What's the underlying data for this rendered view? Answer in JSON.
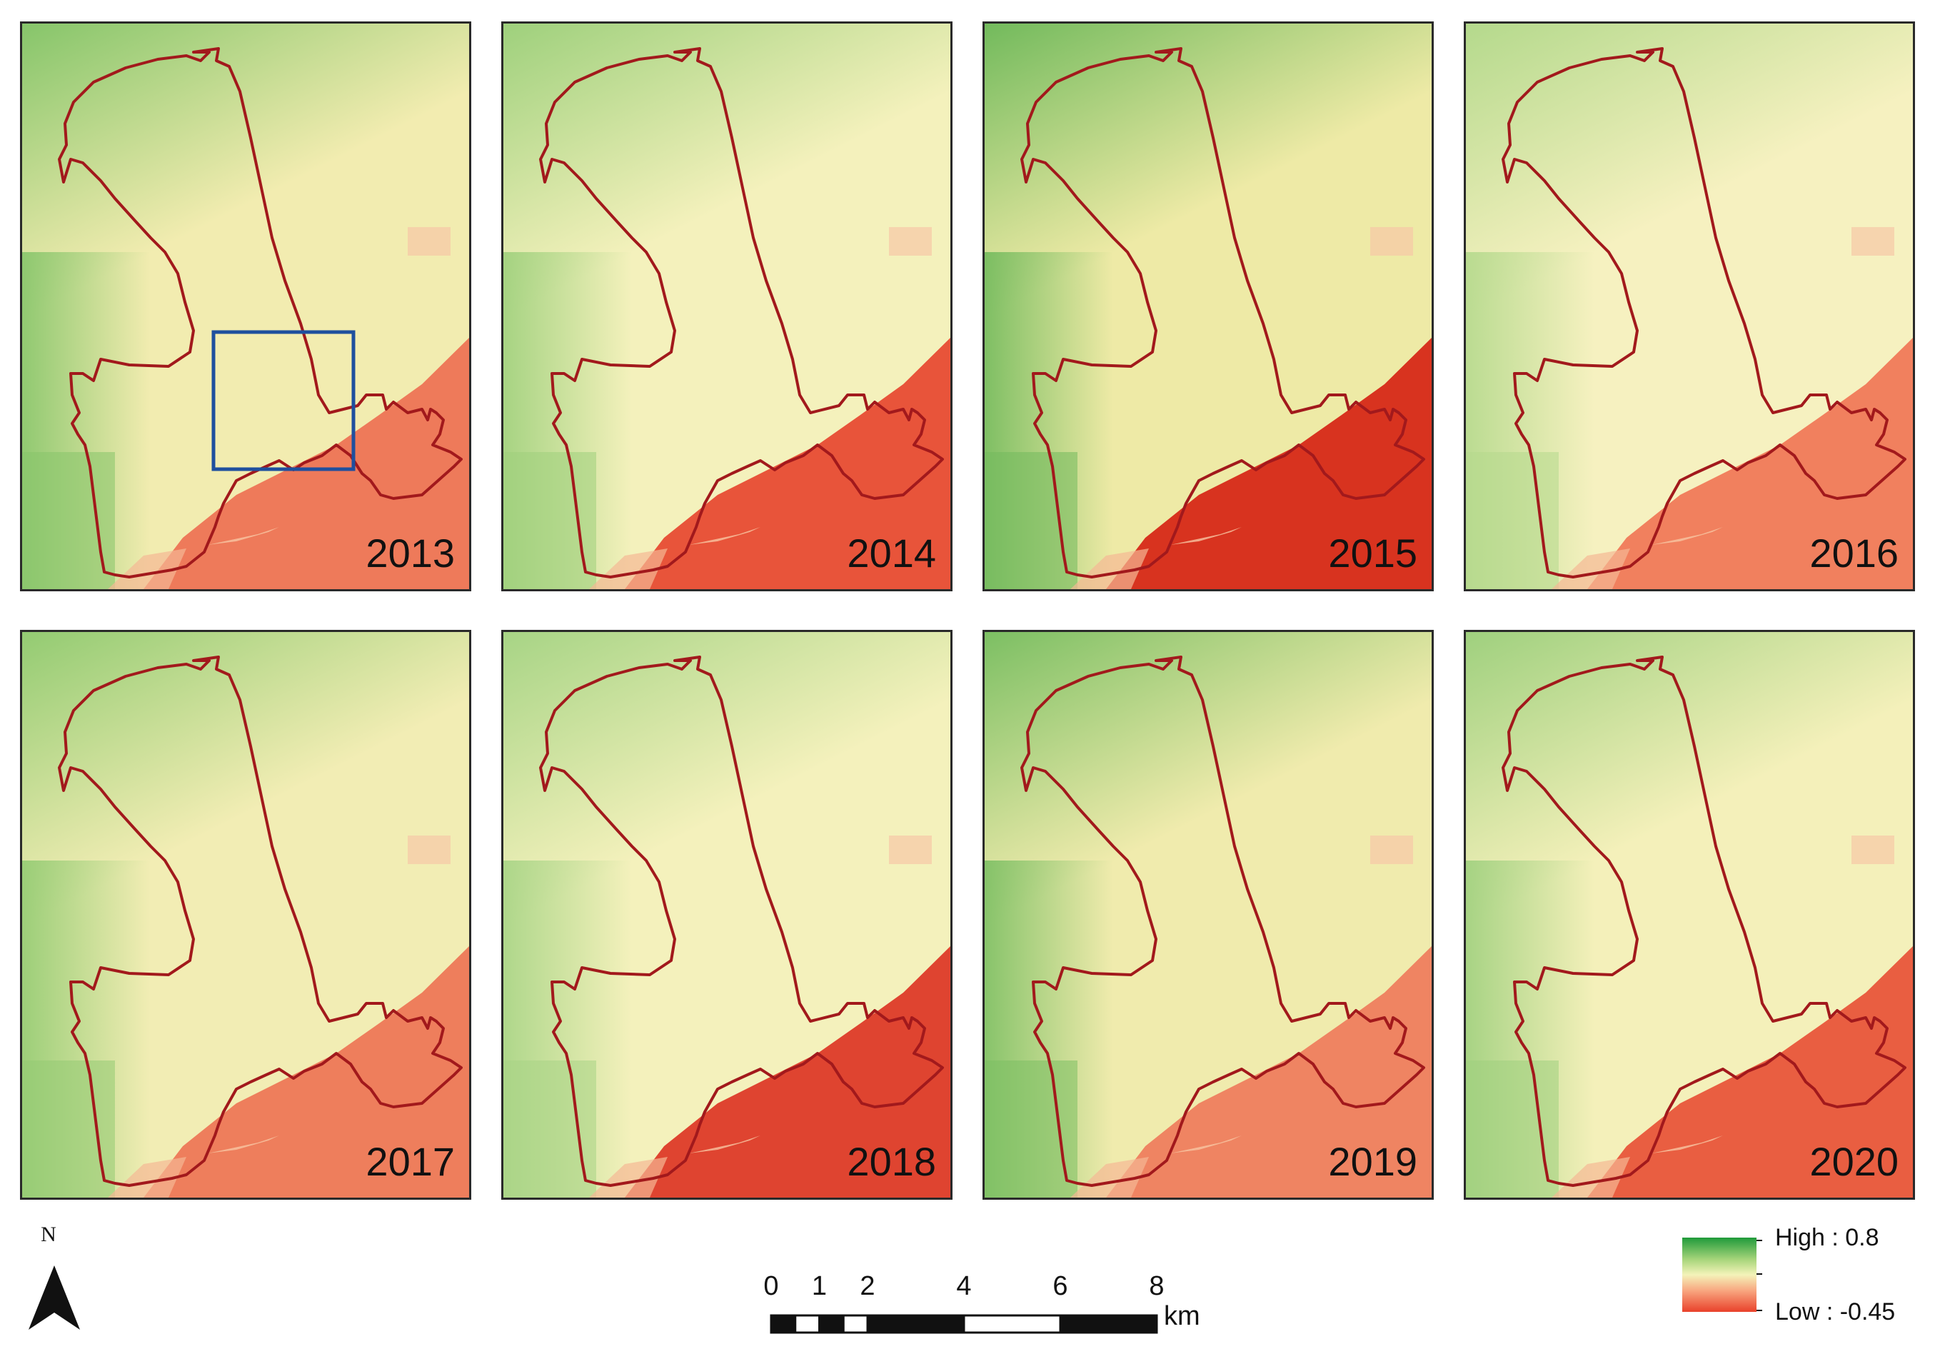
{
  "panels": [
    {
      "year": "2013",
      "sea": "#ee7a5a",
      "veg": "#86c56a",
      "tone": "#f2ecb0",
      "highlight_box": true
    },
    {
      "year": "2014",
      "sea": "#e8543a",
      "veg": "#9ed07c",
      "tone": "#f4f1bc",
      "highlight_box": false
    },
    {
      "year": "2015",
      "sea": "#d8331f",
      "veg": "#72ba5c",
      "tone": "#eeeaa6",
      "highlight_box": false
    },
    {
      "year": "2016",
      "sea": "#f1805e",
      "veg": "#b4d98c",
      "tone": "#f6f1c0",
      "highlight_box": false
    },
    {
      "year": "2017",
      "sea": "#ee7e5c",
      "veg": "#93cb72",
      "tone": "#f2edb4",
      "highlight_box": false
    },
    {
      "year": "2018",
      "sea": "#df4430",
      "veg": "#a7d485",
      "tone": "#f4f1bc",
      "highlight_box": false
    },
    {
      "year": "2019",
      "sea": "#ef8462",
      "veg": "#7cbf63",
      "tone": "#f0ebad",
      "highlight_box": false
    },
    {
      "year": "2020",
      "sea": "#e95e41",
      "veg": "#9fd07e",
      "tone": "#f4f0ba",
      "highlight_box": false
    }
  ],
  "colors": {
    "boundary": "#a2191c",
    "highlight_box": "#1f4f9e",
    "ramp_high": "#1f9a3a",
    "ramp_mid": "#f4f3b9",
    "ramp_low": "#e9412a"
  },
  "north_arrow": {
    "label": "N"
  },
  "scale_bar": {
    "ticks": [
      "0",
      "1",
      "2",
      "4",
      "6",
      "8"
    ],
    "tick_values": [
      0,
      1,
      2,
      4,
      6,
      8
    ],
    "unit": "km"
  },
  "legend": {
    "high_label": "High : 0.8",
    "low_label": "Low : -0.45"
  }
}
